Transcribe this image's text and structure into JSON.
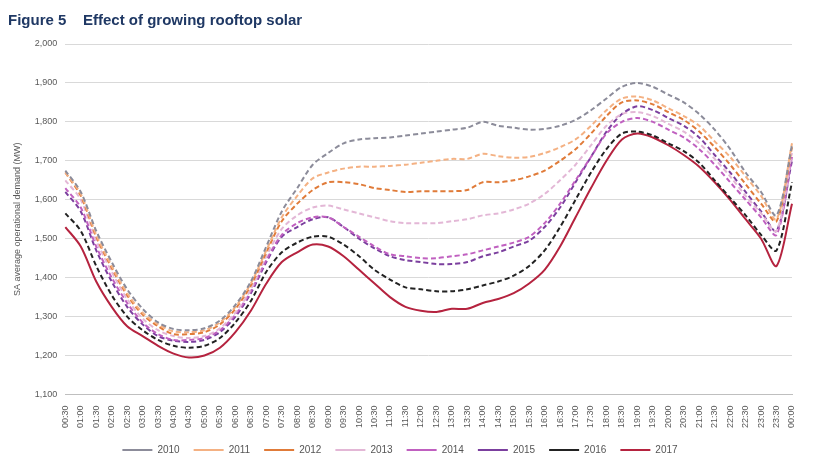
{
  "chart_data": {
    "type": "line",
    "title": "Figure 5    Effect of growing rooftop solar",
    "y_label": "SA average operational demand (MW)",
    "categories": [
      "00:30",
      "01:00",
      "01:30",
      "02:00",
      "02:30",
      "03:00",
      "03:30",
      "04:00",
      "04:30",
      "05:00",
      "05:30",
      "06:00",
      "06:30",
      "07:00",
      "07:30",
      "08:00",
      "08:30",
      "09:00",
      "09:30",
      "10:00",
      "10:30",
      "11:00",
      "11:30",
      "12:00",
      "12:30",
      "13:00",
      "13:30",
      "14:00",
      "14:30",
      "15:00",
      "15:30",
      "16:00",
      "16:30",
      "17:00",
      "17:30",
      "18:00",
      "18:30",
      "19:00",
      "19:30",
      "20:00",
      "20:30",
      "21:00",
      "21:30",
      "22:00",
      "22:30",
      "23:00",
      "23:30",
      "00:00"
    ],
    "ylim": [
      1100,
      2000
    ],
    "yticks": [
      {
        "value": 1100,
        "label": "1,100"
      },
      {
        "value": 1200,
        "label": "1,200"
      },
      {
        "value": 1300,
        "label": "1,300"
      },
      {
        "value": 1400,
        "label": "1,400"
      },
      {
        "value": 1500,
        "label": "1,500"
      },
      {
        "value": 1600,
        "label": "1,600"
      },
      {
        "value": 1700,
        "label": "1,700"
      },
      {
        "value": 1800,
        "label": "1,800"
      },
      {
        "value": 1900,
        "label": "1,900"
      },
      {
        "value": 2000,
        "label": "2,000"
      }
    ],
    "grid": true,
    "legend": "bottom",
    "series": [
      {
        "name": "2010",
        "color": "#8c8c9a",
        "line_style": "dashed",
        "values": [
          1675,
          1620,
          1520,
          1440,
          1370,
          1320,
          1285,
          1268,
          1265,
          1270,
          1290,
          1330,
          1390,
          1480,
          1570,
          1630,
          1690,
          1720,
          1745,
          1755,
          1758,
          1760,
          1765,
          1770,
          1775,
          1780,
          1785,
          1800,
          1790,
          1785,
          1780,
          1782,
          1790,
          1805,
          1830,
          1860,
          1890,
          1900,
          1890,
          1870,
          1850,
          1820,
          1780,
          1730,
          1670,
          1620,
          1560,
          1740
        ]
      },
      {
        "name": "2011",
        "color": "#f4b183",
        "line_style": "dashed",
        "values": [
          1670,
          1615,
          1510,
          1430,
          1360,
          1310,
          1280,
          1262,
          1260,
          1265,
          1285,
          1325,
          1385,
          1470,
          1555,
          1610,
          1655,
          1670,
          1680,
          1685,
          1685,
          1687,
          1690,
          1695,
          1700,
          1705,
          1705,
          1718,
          1712,
          1708,
          1710,
          1720,
          1735,
          1755,
          1790,
          1830,
          1860,
          1865,
          1855,
          1835,
          1815,
          1790,
          1750,
          1710,
          1660,
          1610,
          1550,
          1745
        ]
      },
      {
        "name": "2012",
        "color": "#e07b39",
        "line_style": "dashed",
        "values": [
          1670,
          1610,
          1505,
          1425,
          1355,
          1305,
          1275,
          1255,
          1255,
          1260,
          1280,
          1320,
          1380,
          1465,
          1545,
          1590,
          1625,
          1645,
          1645,
          1640,
          1630,
          1625,
          1620,
          1622,
          1622,
          1622,
          1625,
          1645,
          1645,
          1650,
          1660,
          1675,
          1700,
          1730,
          1770,
          1815,
          1850,
          1855,
          1845,
          1825,
          1805,
          1775,
          1735,
          1690,
          1640,
          1590,
          1545,
          1735
        ]
      },
      {
        "name": "2013",
        "color": "#e3b7d6",
        "line_style": "dashed",
        "values": [
          1650,
          1600,
          1495,
          1415,
          1345,
          1295,
          1265,
          1250,
          1245,
          1250,
          1270,
          1310,
          1370,
          1455,
          1525,
          1560,
          1580,
          1585,
          1575,
          1565,
          1555,
          1545,
          1540,
          1540,
          1540,
          1545,
          1550,
          1560,
          1565,
          1575,
          1590,
          1615,
          1650,
          1690,
          1740,
          1790,
          1820,
          1825,
          1815,
          1795,
          1775,
          1745,
          1705,
          1660,
          1610,
          1565,
          1520,
          1720
        ]
      },
      {
        "name": "2014",
        "color": "#c060c0",
        "line_style": "dashed",
        "values": [
          1630,
          1580,
          1480,
          1400,
          1335,
          1285,
          1255,
          1240,
          1240,
          1245,
          1265,
          1305,
          1365,
          1445,
          1510,
          1540,
          1555,
          1555,
          1530,
          1505,
          1480,
          1460,
          1455,
          1450,
          1450,
          1455,
          1460,
          1470,
          1480,
          1490,
          1505,
          1540,
          1590,
          1650,
          1710,
          1770,
          1800,
          1810,
          1800,
          1780,
          1760,
          1730,
          1690,
          1645,
          1600,
          1555,
          1510,
          1710
        ]
      },
      {
        "name": "2015",
        "color": "#7b3f9e",
        "line_style": "dashed",
        "values": [
          1620,
          1570,
          1470,
          1390,
          1325,
          1280,
          1250,
          1238,
          1235,
          1240,
          1260,
          1300,
          1360,
          1440,
          1505,
          1530,
          1550,
          1555,
          1530,
          1500,
          1475,
          1455,
          1445,
          1440,
          1435,
          1435,
          1440,
          1455,
          1465,
          1480,
          1495,
          1530,
          1580,
          1645,
          1710,
          1775,
          1820,
          1840,
          1830,
          1810,
          1790,
          1760,
          1715,
          1670,
          1620,
          1570,
          1520,
          1700
        ]
      },
      {
        "name": "2016",
        "color": "#222222",
        "line_style": "dashed",
        "values": [
          1565,
          1520,
          1430,
          1355,
          1300,
          1265,
          1240,
          1225,
          1220,
          1225,
          1245,
          1285,
          1340,
          1415,
          1465,
          1490,
          1505,
          1505,
          1485,
          1455,
          1420,
          1395,
          1375,
          1370,
          1365,
          1365,
          1370,
          1380,
          1390,
          1405,
          1430,
          1470,
          1530,
          1600,
          1670,
          1730,
          1770,
          1775,
          1765,
          1745,
          1725,
          1695,
          1650,
          1605,
          1560,
          1510,
          1470,
          1645
        ]
      },
      {
        "name": "2017",
        "color": "#b5233f",
        "line_style": "solid",
        "values": [
          1530,
          1480,
          1390,
          1325,
          1275,
          1250,
          1225,
          1205,
          1195,
          1200,
          1220,
          1260,
          1315,
          1385,
          1440,
          1465,
          1485,
          1480,
          1455,
          1420,
          1385,
          1350,
          1325,
          1315,
          1312,
          1320,
          1320,
          1335,
          1345,
          1360,
          1385,
          1420,
          1480,
          1555,
          1630,
          1700,
          1755,
          1770,
          1760,
          1740,
          1715,
          1685,
          1645,
          1600,
          1550,
          1500,
          1430,
          1590
        ]
      }
    ]
  }
}
